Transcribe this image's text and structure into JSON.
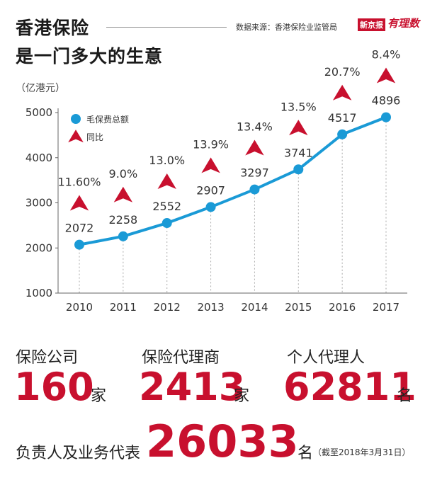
{
  "header": {
    "title_line1": "香港保险",
    "title_line2": "是一门多大的生意",
    "source": "数据来源：香港保险业监管局",
    "logo1": "新京报",
    "logo2": "有理数"
  },
  "unit_label": "（亿港元）",
  "chart_data": {
    "type": "line",
    "x": [
      "2010",
      "2011",
      "2012",
      "2013",
      "2014",
      "2015",
      "2016",
      "2017"
    ],
    "ylim": [
      1000,
      5000
    ],
    "yticks": [
      "1000",
      "2000",
      "3000",
      "4000",
      "5000"
    ],
    "series": [
      {
        "name": "毛保费总额",
        "values": [
          2072,
          2258,
          2552,
          2907,
          3297,
          3741,
          4517,
          4896
        ],
        "color": "#1a9ad6"
      }
    ],
    "growth": {
      "name": "同比",
      "labels": [
        "11.60%",
        "9.0%",
        "13.0%",
        "13.9%",
        "13.4%",
        "13.5%",
        "20.7%",
        "8.4%"
      ],
      "color": "#c8102e"
    },
    "legend_position": "top-left"
  },
  "stats": {
    "companies": {
      "label": "保险公司",
      "value": "160",
      "unit": "家"
    },
    "agencies": {
      "label": "保险代理商",
      "value": "2413",
      "unit": "家"
    },
    "individuals": {
      "label": "个人代理人",
      "value": "62811",
      "unit": "名"
    },
    "reps": {
      "label": "负责人及业务代表",
      "value": "26033",
      "unit": "名",
      "note": "（截至2018年3月31日）"
    }
  }
}
